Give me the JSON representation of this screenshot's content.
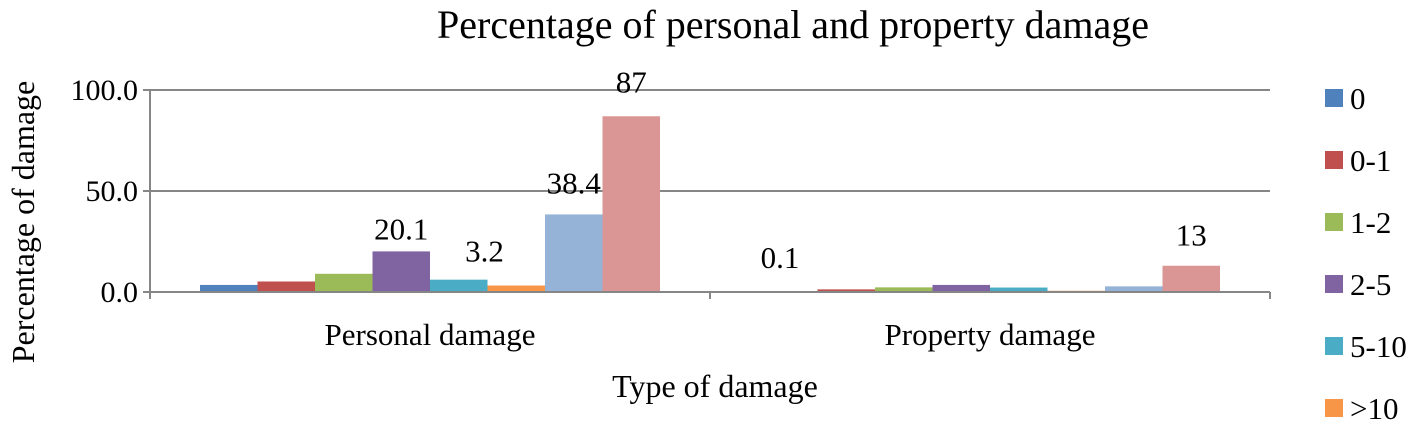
{
  "chart_data": {
    "type": "bar",
    "title": "Percentage of personal and property damage",
    "xlabel": "Type of damage",
    "ylabel": "Percentage of damage",
    "categories": [
      "Personal damage",
      "Property damage"
    ],
    "ylim": [
      0,
      100
    ],
    "yticks": [
      "0.0",
      "50.0",
      "100.0"
    ],
    "grid": true,
    "legend_position": "right",
    "series": [
      {
        "name": "0",
        "color": "#4F81BD",
        "values": [
          3.5,
          0.1
        ],
        "labels": [
          null,
          "0.1"
        ]
      },
      {
        "name": "0-1",
        "color": "#C0504D",
        "values": [
          5.2,
          1.3
        ],
        "labels": [
          null,
          null
        ]
      },
      {
        "name": "1-2",
        "color": "#9BBB59",
        "values": [
          9.0,
          2.3
        ],
        "labels": [
          null,
          null
        ]
      },
      {
        "name": "2-5",
        "color": "#8064A2",
        "values": [
          20.1,
          3.5
        ],
        "labels": [
          "20.1",
          null
        ]
      },
      {
        "name": "5-10",
        "color": "#4BACC6",
        "values": [
          6.1,
          2.2
        ],
        "labels": [
          null,
          null
        ]
      },
      {
        "name": ">10",
        "color": "#F79646",
        "values": [
          3.2,
          0.6
        ],
        "labels": [
          "3.2",
          null
        ]
      },
      {
        "name": "",
        "color": "#95B3D7",
        "values": [
          38.4,
          2.8
        ],
        "labels": [
          "38.4",
          null
        ]
      },
      {
        "name": "",
        "color": "#D99694",
        "values": [
          87,
          13
        ],
        "labels": [
          "87",
          "13"
        ]
      }
    ]
  }
}
